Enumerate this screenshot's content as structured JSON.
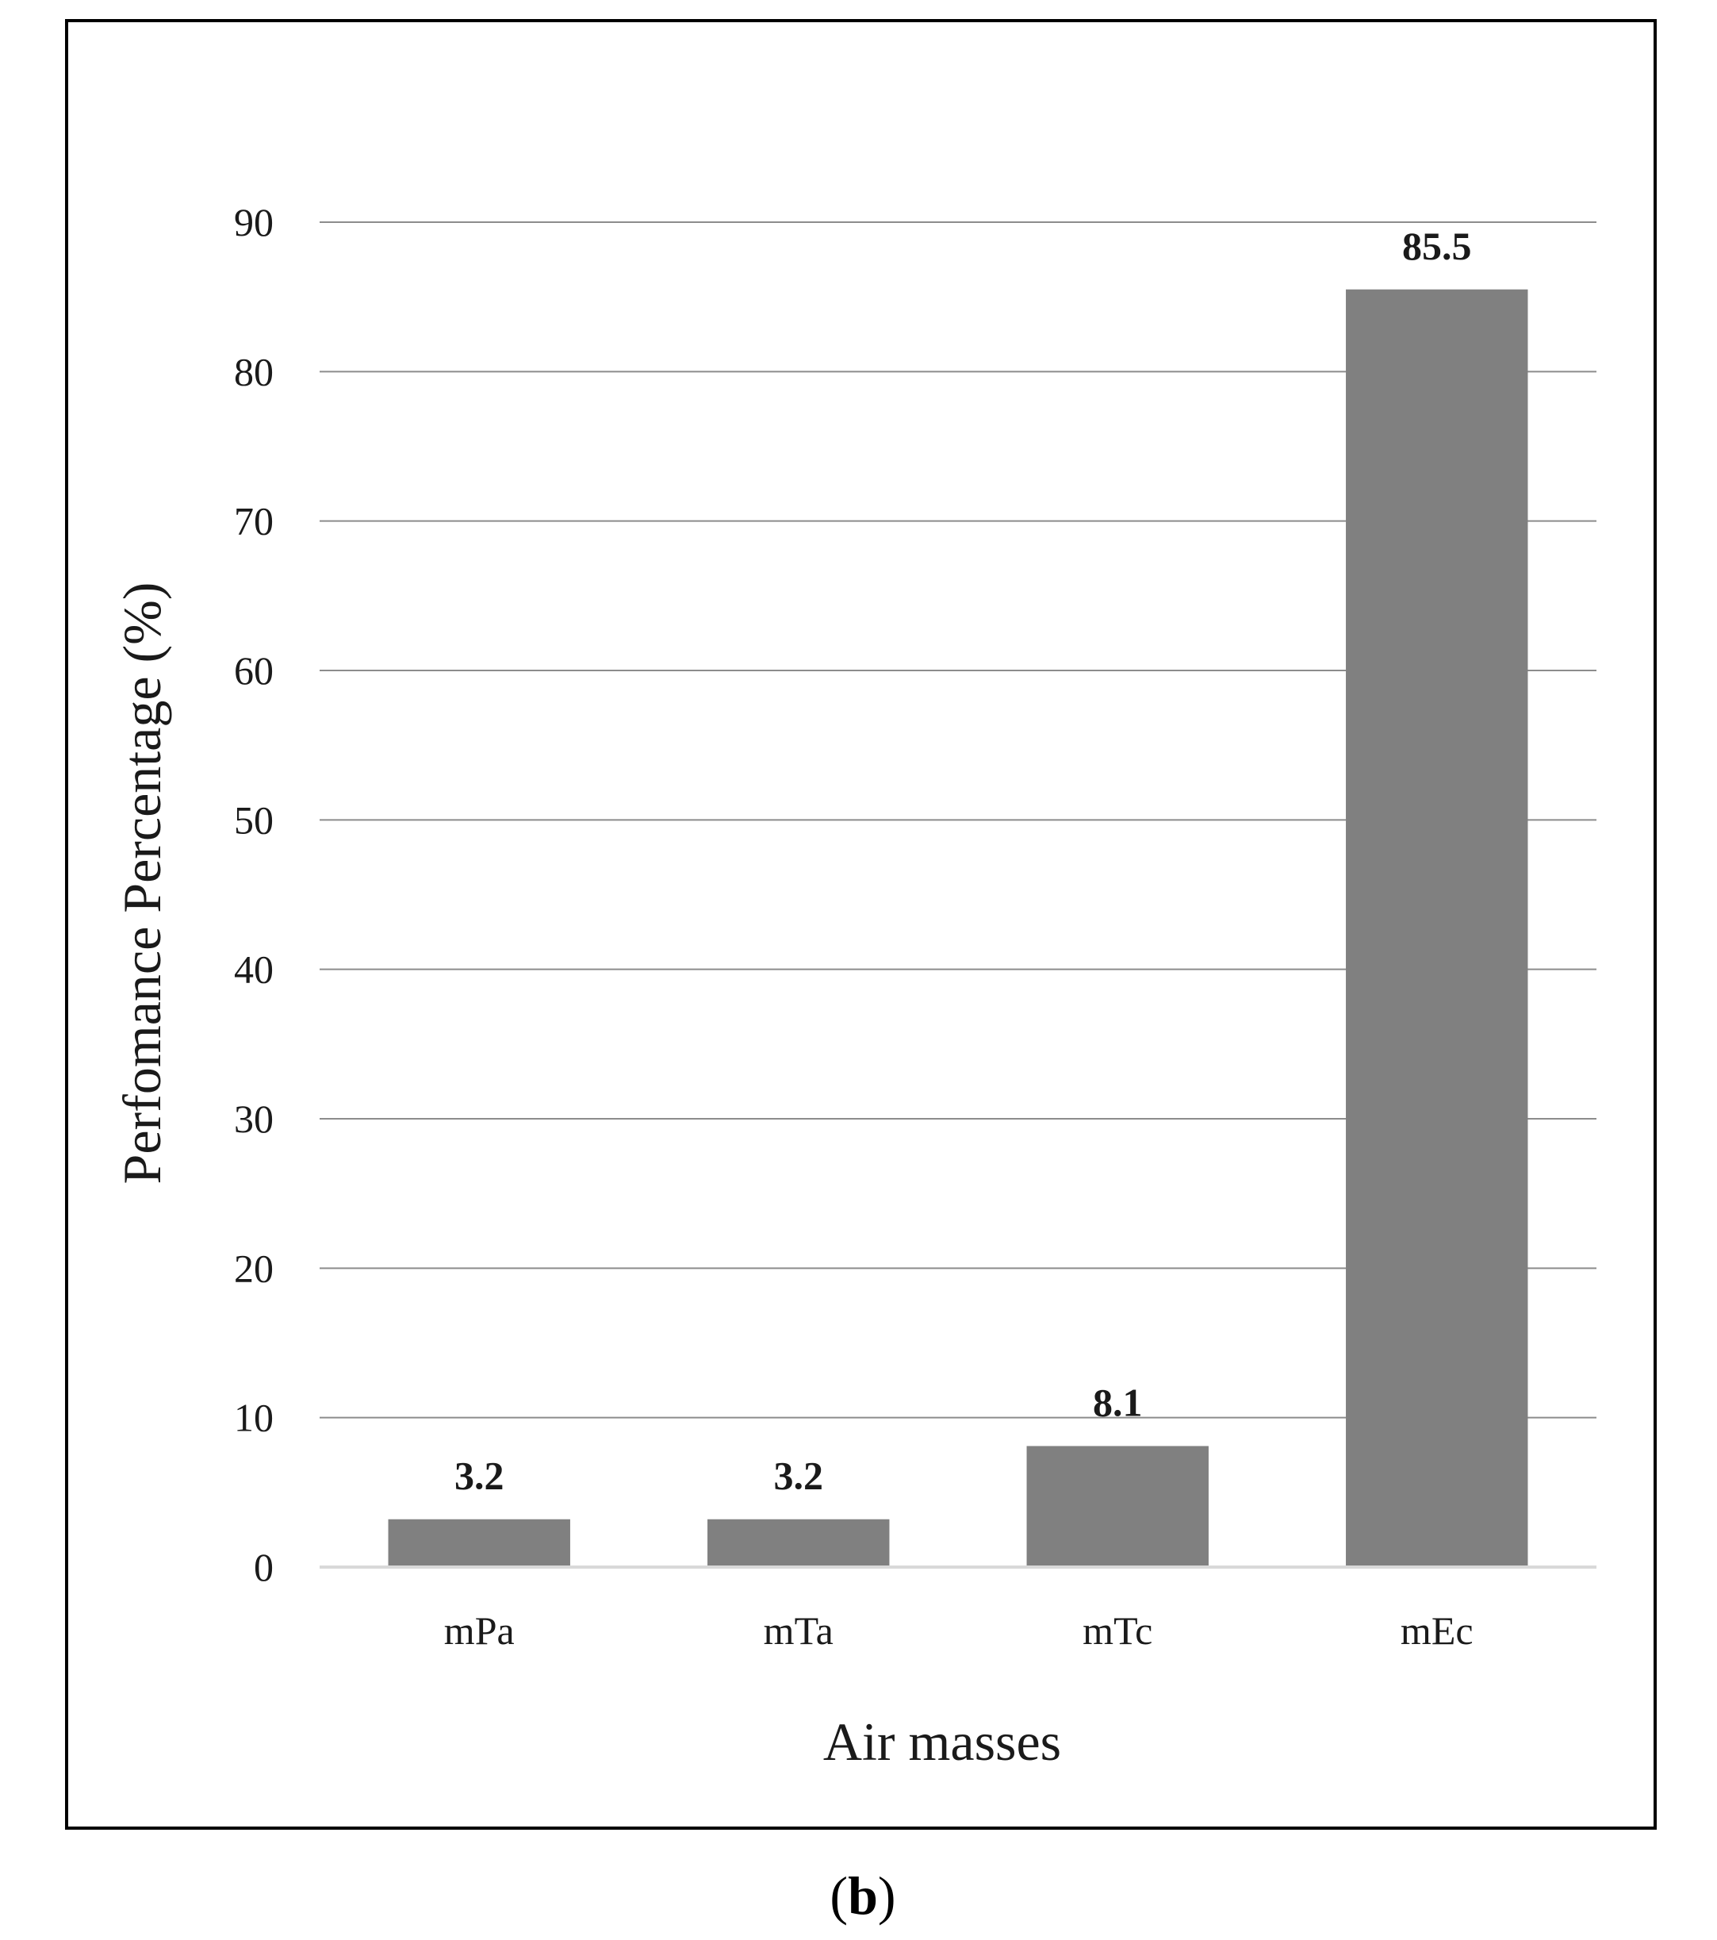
{
  "chart_data": {
    "type": "bar",
    "categories": [
      "mPa",
      "mTa",
      "mTc",
      "mEc"
    ],
    "values": [
      3.2,
      3.2,
      8.1,
      85.5
    ],
    "value_labels": [
      "3.2",
      "3.2",
      "8.1",
      "85.5"
    ],
    "xlabel": "Air masses",
    "ylabel": "Perfomance Percentage (%)",
    "ylim": [
      0,
      90
    ],
    "yticks": [
      "0",
      "10",
      "20",
      "30",
      "40",
      "50",
      "60",
      "70",
      "80",
      "90"
    ],
    "grid": true,
    "legend": "none"
  },
  "panel_label": {
    "open": "(",
    "letter": "b",
    "close": ")"
  },
  "colors": {
    "bar": "#808080",
    "grid": "#8c8c8c",
    "baseline": "#d9d9d9",
    "frame": "#000000"
  }
}
